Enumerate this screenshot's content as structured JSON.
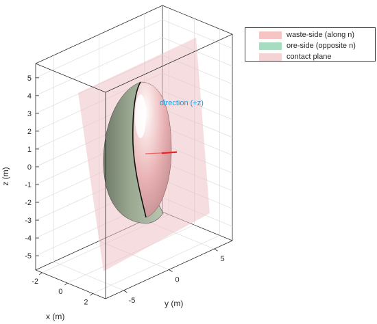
{
  "chart_data": {
    "type": "surface3d",
    "title": "",
    "xlabel": "x (m)",
    "ylabel": "y (m)",
    "zlabel": "z (m)",
    "x_ticks": [
      "-2",
      "0",
      "2"
    ],
    "y_ticks": [
      "-5",
      "0",
      "5"
    ],
    "z_ticks": [
      "-5",
      "-4",
      "-3",
      "-2",
      "-1",
      "0",
      "1",
      "2",
      "3",
      "4",
      "5"
    ],
    "xlim": [
      -2.5,
      3
    ],
    "ylim": [
      -7,
      7
    ],
    "zlim": [
      -5.8,
      5.8
    ],
    "grid": true,
    "box": true,
    "legend_position": "outside-top-right",
    "annotation": "direction (+z)",
    "series": [
      {
        "name": "waste-side (along n)",
        "color": "#f7c4c4"
      },
      {
        "name": "ore-side (opposite n)",
        "color": "#a8dcc0"
      },
      {
        "name": "contact plane",
        "color": "#f4d3d5"
      }
    ],
    "normal_arrow_color": "#e8292a"
  }
}
